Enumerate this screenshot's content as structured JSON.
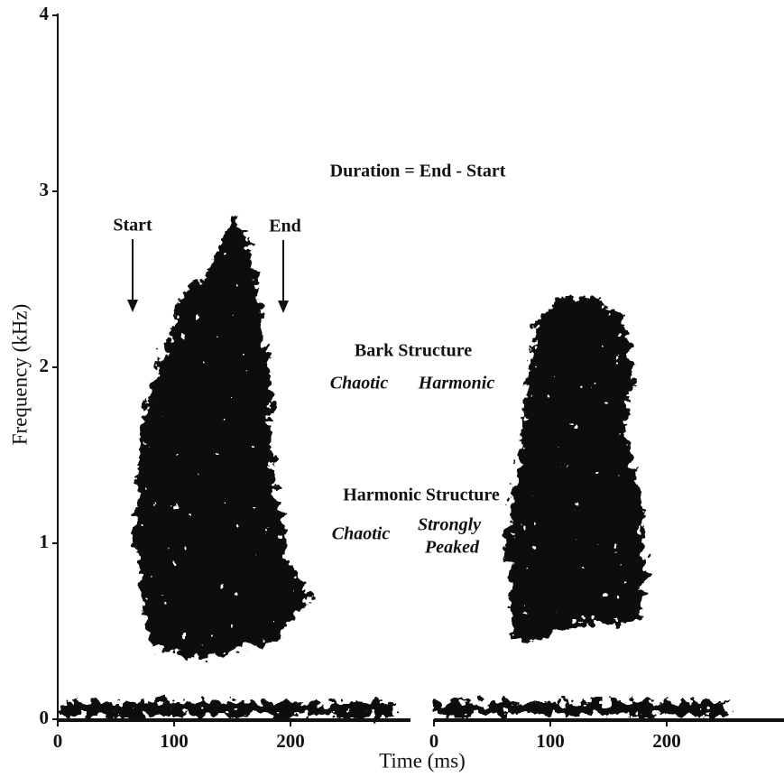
{
  "chart_data": {
    "type": "spectrogram",
    "x_label": "Time (ms)",
    "y_label": "Frequency (kHz)",
    "ylim": [
      0,
      4
    ],
    "yticks": [
      0,
      1,
      2,
      3,
      4
    ],
    "panels": [
      {
        "xlim": [
          0,
          300
        ],
        "xticks": [
          0,
          100,
          200
        ]
      },
      {
        "xlim": [
          0,
          300
        ],
        "xticks": [
          0,
          100,
          200
        ]
      }
    ],
    "annotations": [
      "Duration = End - Start",
      "Start",
      "End",
      "Bark Structure",
      "Chaotic",
      "Harmonic",
      "Harmonic Structure",
      "Chaotic",
      "Strongly",
      "Peaked"
    ]
  }
}
